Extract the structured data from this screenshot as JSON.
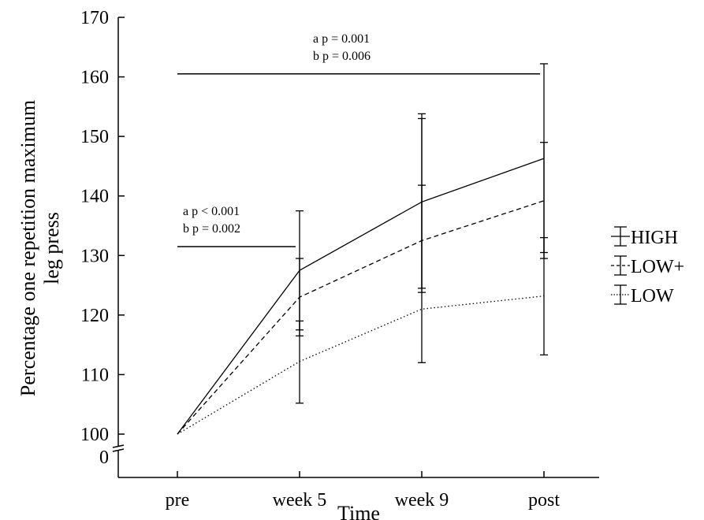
{
  "chart_data": {
    "type": "line",
    "xlabel": "Time",
    "ylabel_lines": [
      "Percentage one repetition maximum",
      "leg press"
    ],
    "categories": [
      "pre",
      "week 5",
      "week 9",
      "post"
    ],
    "ylim": [
      100,
      170
    ],
    "yticks": [
      "100",
      "110",
      "120",
      "130",
      "140",
      "150",
      "160",
      "170"
    ],
    "ybreak_label": "0",
    "grid": false,
    "legend_position": "right",
    "series": [
      {
        "name": "HIGH",
        "style": "solid",
        "values": [
          100,
          127.5,
          139,
          146.3
        ],
        "err_low": [
          100,
          117.5,
          124.5,
          130.5
        ],
        "err_high": [
          100,
          137.5,
          153.8,
          162.2
        ]
      },
      {
        "name": "LOW+",
        "style": "dashed",
        "values": [
          100,
          123,
          132.5,
          139.2
        ],
        "err_low": [
          100,
          116.5,
          112,
          129.5
        ],
        "err_high": [
          100,
          129.5,
          153,
          149
        ]
      },
      {
        "name": "LOW",
        "style": "dotted",
        "values": [
          100,
          112.2,
          121,
          123.2
        ],
        "err_low": [
          100,
          105.2,
          123.8,
          113.3
        ],
        "err_high": [
          100,
          119,
          141.8,
          133
        ]
      }
    ],
    "annotations": [
      {
        "lines": [
          "a  p = 0.001",
          "b  p = 0.006"
        ],
        "bar_from": "pre",
        "bar_to": "post",
        "bar_y": 160.5
      },
      {
        "lines": [
          "a  p < 0.001",
          "b  p = 0.002"
        ],
        "bar_from": "pre",
        "bar_to": "week 5",
        "bar_y": 131.5
      }
    ]
  }
}
